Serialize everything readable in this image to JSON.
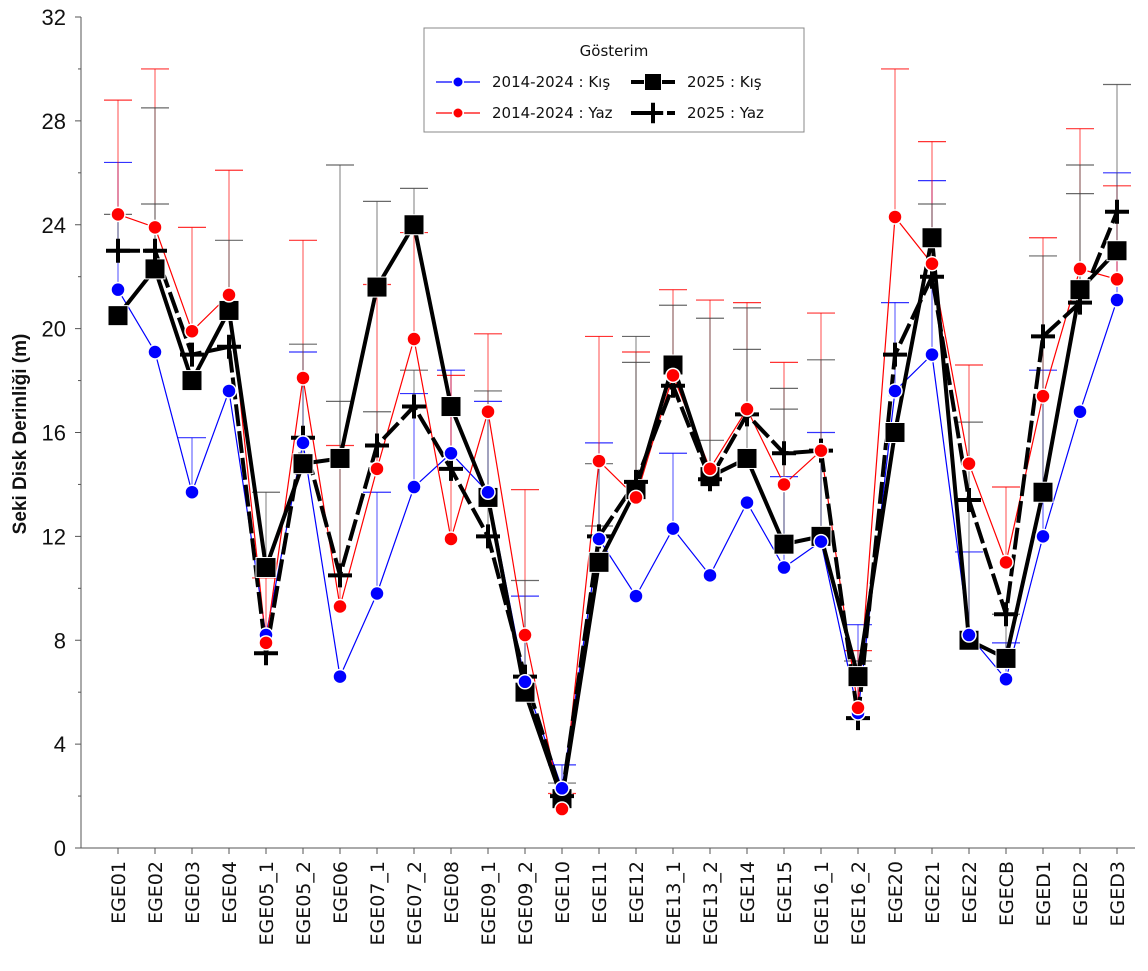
{
  "chart_data": {
    "type": "line",
    "ylabel": "Seki Disk Derinliği (m)",
    "xlabel": "",
    "ylim": [
      0,
      32
    ],
    "y_ticks": [
      0,
      4,
      8,
      12,
      16,
      20,
      24,
      28,
      32
    ],
    "grid": false,
    "legend_title": "Gösterim",
    "legend_position": "top-center",
    "categories": [
      "EGE01",
      "EGE02",
      "EGE03",
      "EGE04",
      "EGE05_1",
      "EGE05_2",
      "EGE06",
      "EGE07_1",
      "EGE07_2",
      "EGE08",
      "EGE09_1",
      "EGE09_2",
      "EGE10",
      "EGE11",
      "EGE12",
      "EGE13_1",
      "EGE13_2",
      "EGE14",
      "EGE15",
      "EGE16_1",
      "EGE16_2",
      "EGE20",
      "EGE21",
      "EGE22",
      "EGECB",
      "EGED1",
      "EGED2",
      "EGED3"
    ],
    "series": [
      {
        "name": "2014-2024 : Kış",
        "color": "#0000ff",
        "marker": "circle",
        "style": "thin",
        "values": [
          21.5,
          19.1,
          13.7,
          17.6,
          8.2,
          15.6,
          6.6,
          9.8,
          13.9,
          15.2,
          13.7,
          6.4,
          2.3,
          11.9,
          9.7,
          12.3,
          10.5,
          13.3,
          10.8,
          11.8,
          5.2,
          17.6,
          19.0,
          8.2,
          6.5,
          12.0,
          16.8,
          21.1
        ],
        "error_upper": [
          26.4,
          null,
          15.8,
          null,
          null,
          19.1,
          null,
          13.7,
          17.5,
          18.4,
          17.2,
          9.7,
          3.2,
          15.6,
          null,
          15.2,
          null,
          null,
          14.3,
          16.0,
          8.6,
          21.0,
          25.7,
          11.4,
          7.9,
          18.4,
          null,
          26.0
        ]
      },
      {
        "name": "2014-2024 : Yaz",
        "color": "#ff0000",
        "marker": "circle",
        "style": "thin",
        "values": [
          24.4,
          23.9,
          19.9,
          21.3,
          7.9,
          18.1,
          9.3,
          14.6,
          19.6,
          11.9,
          16.8,
          8.2,
          1.5,
          14.9,
          13.5,
          18.2,
          14.6,
          16.9,
          14.0,
          15.3,
          5.4,
          24.3,
          22.5,
          14.8,
          11.0,
          17.4,
          22.3,
          21.9
        ],
        "error_upper": [
          28.8,
          30.0,
          23.9,
          26.1,
          10.4,
          23.4,
          15.5,
          21.7,
          23.7,
          18.2,
          19.8,
          13.8,
          2.1,
          19.7,
          19.1,
          21.5,
          21.1,
          21.0,
          18.7,
          20.6,
          7.6,
          30.0,
          27.2,
          18.6,
          13.9,
          23.5,
          27.7,
          25.5
        ]
      },
      {
        "name": "2025 : Kış",
        "color": "#000000",
        "marker": "square",
        "style": "thick",
        "values": [
          20.5,
          22.3,
          18.0,
          20.7,
          10.8,
          14.8,
          15.0,
          21.6,
          24.0,
          17.0,
          13.5,
          6.0,
          1.9,
          11.0,
          13.8,
          18.6,
          14.3,
          15.0,
          11.7,
          12.0,
          6.6,
          16.0,
          23.5,
          8.0,
          7.3,
          13.7,
          21.5,
          23.0
        ],
        "error_upper": [
          null,
          24.8,
          null,
          23.4,
          13.7,
          19.4,
          26.3,
          24.9,
          25.4,
          null,
          null,
          10.3,
          2.5,
          14.8,
          19.7,
          20.9,
          20.4,
          20.8,
          17.7,
          18.8,
          7.2,
          null,
          24.8,
          16.4,
          9.0,
          22.8,
          26.3,
          29.4
        ]
      },
      {
        "name": "2025 : Yaz",
        "color": "#000000",
        "marker": "plus",
        "style": "thick-dashed",
        "values": [
          23.0,
          23.0,
          19.0,
          19.3,
          7.5,
          15.8,
          10.5,
          15.5,
          17.0,
          14.6,
          12.0,
          6.6,
          2.0,
          12.0,
          14.1,
          17.8,
          14.2,
          16.7,
          15.2,
          15.3,
          5.0,
          19.0,
          22.0,
          13.4,
          9.0,
          19.7,
          21.0,
          24.5
        ],
        "error_upper": [
          24.4,
          28.5,
          null,
          null,
          null,
          null,
          17.2,
          16.8,
          18.4,
          null,
          17.6,
          null,
          null,
          12.4,
          18.7,
          null,
          15.7,
          19.2,
          16.9,
          null,
          null,
          null,
          null,
          null,
          null,
          null,
          25.2,
          null
        ]
      }
    ]
  }
}
